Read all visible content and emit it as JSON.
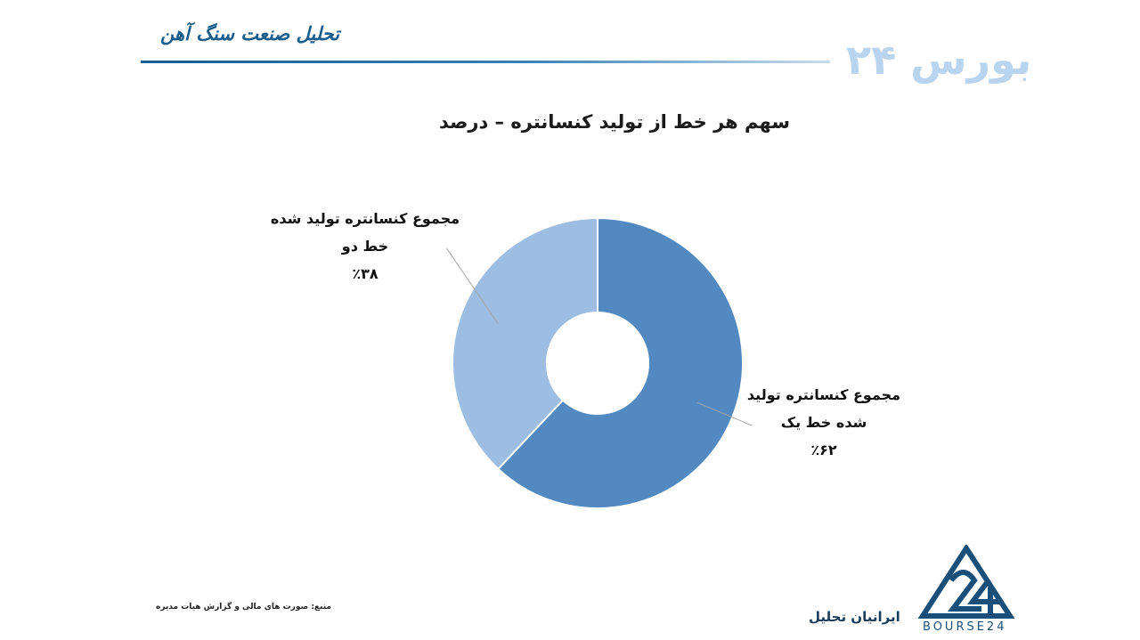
{
  "header": {
    "title": "تحلیل صنعت سنگ آهن",
    "logo": "بورس ۲۴"
  },
  "chart_data": {
    "type": "pie",
    "title": "سهم هر خط از تولید کنسانتره – درصد",
    "slices": [
      {
        "label_lines": [
          "مجموع کنسانتره تولید",
          "شده خط یک"
        ],
        "value_label": "٪۶۲",
        "value": 62,
        "color": "#5189c0"
      },
      {
        "label_lines": [
          "مجموع کنسانتره تولید شده",
          "خط دو"
        ],
        "value_label": "٪۳۸",
        "value": 38,
        "color": "#9dbde3"
      }
    ],
    "inner_radius_ratio": 0.35,
    "start_angle_deg": 0,
    "direction": "clockwise"
  },
  "footer": {
    "source": "منبع: صورت های مالی و گزارش هیات مدیره",
    "publisher": "ایرانیان تحلیل",
    "logo_text": "BOURSE24"
  }
}
